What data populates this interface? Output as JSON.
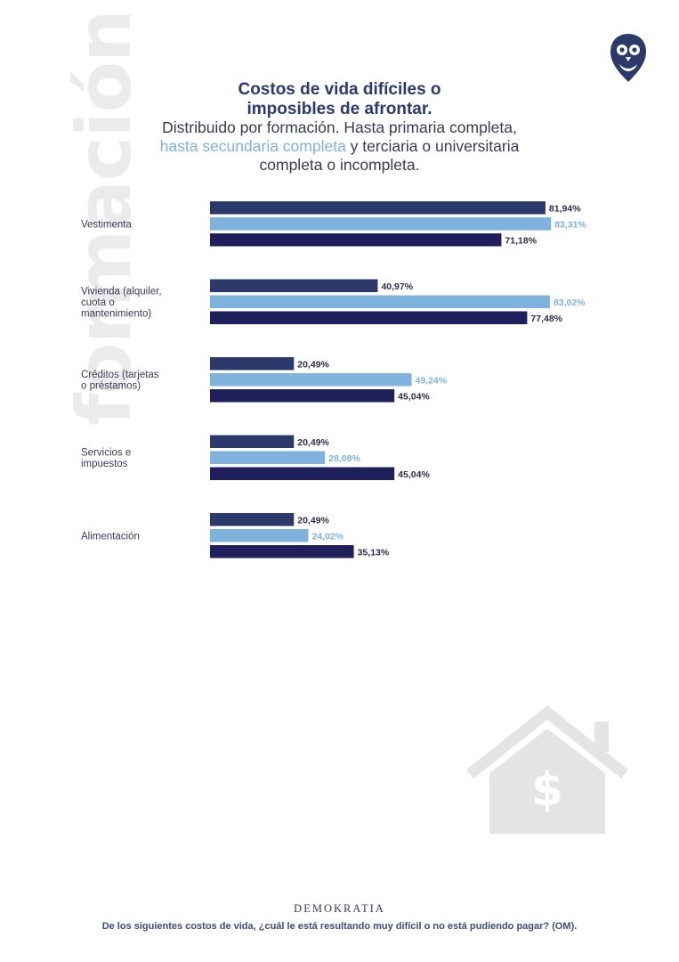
{
  "watermark": "formación",
  "header": {
    "title_line1": "Costos de vida difíciles o",
    "title_line2": "imposibles de afrontar.",
    "subtitle_line1": "Distribuido por formación. Hasta primaria completa,",
    "subtitle_line2_accent": "hasta secundaria completa",
    "subtitle_line2_rest": " y terciaria o universitaria",
    "subtitle_line3": "completa o incompleta."
  },
  "colors": {
    "primaria": "#2b3a6b",
    "secundaria": "#7fb2dc",
    "terciaria": "#1f1f5c",
    "watermark": "#ebebeb",
    "house": "#e4e4e4"
  },
  "icons": [
    "owl-logo-icon",
    "house-dollar-icon"
  ],
  "chart_data": {
    "type": "bar",
    "orientation": "horizontal",
    "categories": [
      [
        "Vestimenta"
      ],
      [
        "Vivienda (alquiler,",
        "cuota o",
        "mantenimiento)"
      ],
      [
        "Créditos (tarjetas",
        "o préstamos)"
      ],
      [
        "Servicios e",
        "impuestos"
      ],
      [
        "Alimentación"
      ]
    ],
    "series": [
      {
        "color": "#2b3a6b",
        "values": [
          81.94,
          40.97,
          20.49,
          20.49,
          20.49
        ],
        "labels": [
          "81,94%",
          "40,97%",
          "20,49%",
          "20,49%",
          "20,49%"
        ]
      },
      {
        "color": "#7fb2dc",
        "values": [
          83.31,
          83.02,
          49.24,
          28.08,
          24.02
        ],
        "labels": [
          "83,31%",
          "83,02%",
          "49,24%",
          "28,08%",
          "24,02%"
        ]
      },
      {
        "color": "#1f1f5c",
        "values": [
          71.18,
          77.48,
          45.04,
          45.04,
          35.13
        ],
        "labels": [
          "71,18%",
          "77,48%",
          "45,04%",
          "45,04%",
          "35,13%"
        ]
      }
    ],
    "xlim": [
      0,
      100
    ],
    "grid": false,
    "legend": "none (encoded in subtitle colors)"
  },
  "footer": {
    "brand": "DEMOKRATIA",
    "question": "De los siguientes costos de vida, ¿cuál le está resultando muy difícil o no está pudiendo pagar? (OM)."
  }
}
